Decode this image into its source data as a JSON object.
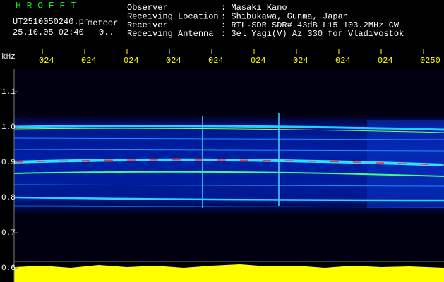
{
  "header": {
    "app": "H R O F F T",
    "file": "UT2510050240.pn",
    "mode": "meteor",
    "datetime": "25.10.05 02:40",
    "counter": "0..",
    "fields": [
      {
        "label": "Observer",
        "value": ": Masaki Kano"
      },
      {
        "label": "Receiving Location",
        "value": ": Shibukawa, Gunma, Japan"
      },
      {
        "label": "Receiver",
        "value": ": RTL-SDR SDR# 43dB L15 103.2MHz CW"
      },
      {
        "label": "Receiving Antenna",
        "value": ": 3el Yagi(V) Az 330 for Vladivostok"
      }
    ]
  },
  "axis": {
    "unit": "kHz",
    "time_labels": [
      "024",
      "024",
      "024",
      "024",
      "024",
      "024",
      "024",
      "024",
      "024",
      "0250"
    ],
    "freq_labels": [
      "1.1",
      "1.0",
      "0.9",
      "0.8",
      "0.7",
      "0.6"
    ]
  }
}
